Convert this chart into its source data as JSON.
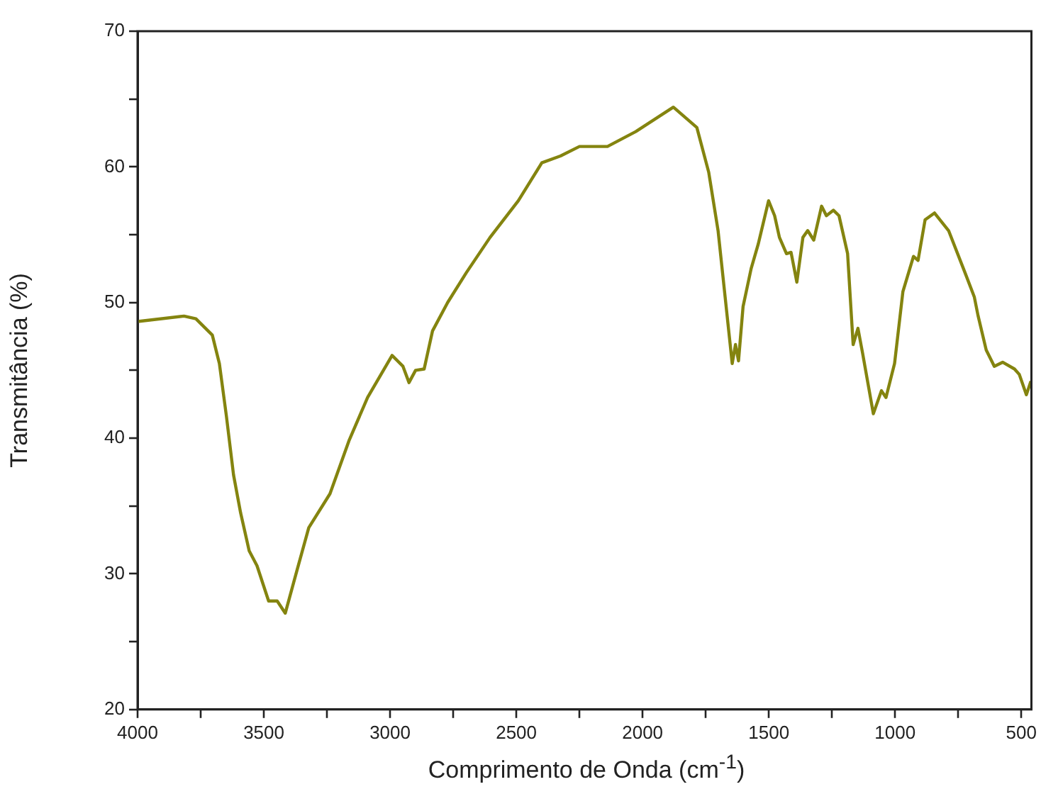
{
  "chart_data": {
    "type": "line",
    "xlabel": "Comprimento de Onda (cm$^{-1}$)",
    "ylabel": "Transmitância (%)",
    "xlim": [
      4000,
      460
    ],
    "ylim": [
      20,
      70
    ],
    "xticks": [
      4000,
      {
        "value": 3750,
        "label": null
      },
      3500,
      {
        "value": 3250,
        "label": null
      },
      3000,
      {
        "value": 2750,
        "label": null
      },
      2500,
      {
        "value": 2250,
        "label": null
      },
      2000,
      {
        "value": 1750,
        "label": null
      },
      1500,
      {
        "value": 1250,
        "label": null
      },
      1000,
      {
        "value": 750,
        "label": null
      },
      500
    ],
    "yticks": [
      20,
      {
        "value": 25,
        "label": null
      },
      30,
      {
        "value": 35,
        "label": null
      },
      40,
      {
        "value": 45,
        "label": null
      },
      50,
      {
        "value": 55,
        "label": null
      },
      60,
      {
        "value": 65,
        "label": null
      },
      70
    ],
    "grid": false,
    "legend": false,
    "marker": "none",
    "line_style": "solid",
    "series": [
      {
        "color": "#84840f",
        "x": [
          4000,
          3816,
          3769,
          3704,
          3676,
          3648,
          3620,
          3592,
          3558,
          3527,
          3481,
          3447,
          3415,
          3368,
          3322,
          3238,
          3163,
          3089,
          2992,
          2949,
          2925,
          2899,
          2865,
          2832,
          2772,
          2698,
          2604,
          2492,
          2399,
          2325,
          2250,
          2139,
          2027,
          1878,
          1785,
          1738,
          1701,
          1673,
          1645,
          1632,
          1620,
          1602,
          1570,
          1542,
          1501,
          1477,
          1458,
          1430,
          1412,
          1389,
          1365,
          1346,
          1322,
          1291,
          1272,
          1244,
          1222,
          1188,
          1166,
          1147,
          1128,
          1086,
          1054,
          1036,
          1002,
          969,
          927,
          909,
          881,
          844,
          788,
          723,
          686,
          671,
          639,
          607,
          574,
          527,
          508,
          480,
          462
        ],
        "values": [
          48.6,
          49.0,
          48.8,
          47.6,
          45.5,
          41.6,
          37.3,
          34.5,
          31.7,
          30.6,
          28.0,
          28.0,
          27.1,
          30.3,
          33.4,
          35.9,
          39.8,
          43.0,
          46.1,
          45.3,
          44.1,
          45.0,
          45.1,
          47.9,
          50.0,
          52.2,
          54.8,
          57.5,
          60.3,
          60.8,
          61.5,
          61.5,
          62.6,
          64.4,
          62.9,
          59.6,
          55.3,
          50.4,
          45.5,
          46.9,
          45.7,
          49.7,
          52.5,
          54.3,
          57.5,
          56.4,
          54.8,
          53.6,
          53.7,
          51.5,
          54.8,
          55.3,
          54.6,
          57.1,
          56.4,
          56.8,
          56.4,
          53.6,
          46.9,
          48.1,
          46.2,
          41.8,
          43.5,
          43.0,
          45.5,
          50.8,
          53.4,
          53.1,
          56.1,
          56.6,
          55.3,
          52.2,
          50.4,
          49.0,
          46.5,
          45.3,
          45.6,
          45.1,
          44.7,
          43.2,
          44.2
        ]
      }
    ]
  }
}
